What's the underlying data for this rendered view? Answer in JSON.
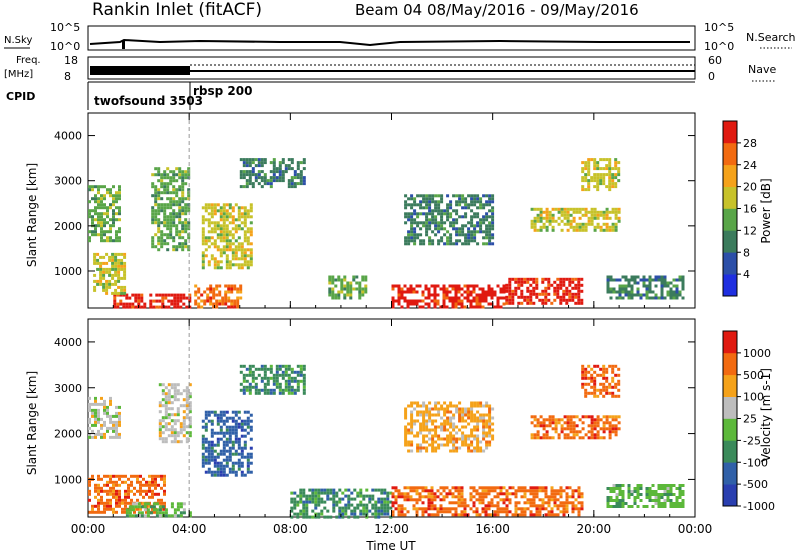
{
  "title_left": "Rankin Inlet (fitACF)",
  "title_right": "Beam 04 08/May/2016 - 09/May/2016",
  "header": {
    "nsky_label": "N.Sky",
    "nsearch_label": "N.Search",
    "nave_label": "Nave",
    "freq_label_1": "Freq.",
    "freq_label_2": "[MHz]",
    "cpid_label": "CPID",
    "nsky_ticks": [
      "10^5",
      "10^0"
    ],
    "nsearch_ticks": [
      "10^5",
      "10^0"
    ],
    "freq_ticks": [
      "18",
      "8"
    ],
    "nave_ticks": [
      "60",
      "0"
    ],
    "cpid_entries": [
      {
        "name": "twofsound 3503",
        "start_hour": 0
      },
      {
        "name": "rbsp 200",
        "start_hour": 4
      }
    ]
  },
  "chart_data": [
    {
      "type": "heatmap",
      "title": "",
      "xlabel": "Time UT",
      "ylabel": "Slant Range [km]",
      "xlim": [
        0,
        24
      ],
      "ylim": [
        180,
        4500
      ],
      "x_tick_labels": [
        "00:00",
        "04:00",
        "08:00",
        "12:00",
        "16:00",
        "20:00",
        "00:00"
      ],
      "x_ticks": [
        0,
        4,
        8,
        12,
        16,
        20,
        24
      ],
      "y_ticks": [
        1000,
        2000,
        3000,
        4000
      ],
      "colorbar": {
        "label": "Power [dB]",
        "tick_labels": [
          "4",
          "8",
          "12",
          "16",
          "20",
          "24",
          "28"
        ],
        "tick_values": [
          4,
          8,
          12,
          16,
          20,
          24,
          28
        ],
        "range": [
          0,
          32
        ],
        "colors": [
          "#1f2fe0",
          "#2c4fa8",
          "#3b7b5c",
          "#59a548",
          "#c7c22a",
          "#f5a21a",
          "#f26a10",
          "#e01a10"
        ]
      },
      "regions": [
        {
          "x": [
            1.0,
            4.0
          ],
          "y": [
            200,
            500
          ],
          "level": 7
        },
        {
          "x": [
            0.2,
            1.5
          ],
          "y": [
            500,
            1400
          ],
          "level": 4
        },
        {
          "x": [
            0.0,
            1.2
          ],
          "y": [
            1700,
            2900
          ],
          "level": 3
        },
        {
          "x": [
            2.5,
            4.0
          ],
          "y": [
            1500,
            3300
          ],
          "level": 3
        },
        {
          "x": [
            4.2,
            6.0
          ],
          "y": [
            180,
            700
          ],
          "level": 6
        },
        {
          "x": [
            4.5,
            6.5
          ],
          "y": [
            1100,
            2500
          ],
          "level": 4
        },
        {
          "x": [
            6.0,
            8.5
          ],
          "y": [
            2900,
            3500
          ],
          "level": 2
        },
        {
          "x": [
            9.5,
            11.0
          ],
          "y": [
            400,
            900
          ],
          "level": 3
        },
        {
          "x": [
            12.0,
            16.5
          ],
          "y": [
            200,
            700
          ],
          "level": 7
        },
        {
          "x": [
            16.5,
            19.5
          ],
          "y": [
            280,
            850
          ],
          "level": 7
        },
        {
          "x": [
            12.5,
            16.0
          ],
          "y": [
            1600,
            2700
          ],
          "level": 2
        },
        {
          "x": [
            17.5,
            21.0
          ],
          "y": [
            1900,
            2400
          ],
          "level": 4
        },
        {
          "x": [
            19.5,
            21.0
          ],
          "y": [
            2800,
            3500
          ],
          "level": 4
        },
        {
          "x": [
            20.5,
            23.5
          ],
          "y": [
            400,
            900
          ],
          "level": 2
        }
      ]
    },
    {
      "type": "heatmap",
      "title": "",
      "xlabel": "Time UT",
      "ylabel": "Slant Range [km]",
      "xlim": [
        0,
        24
      ],
      "ylim": [
        180,
        4500
      ],
      "x_tick_labels": [
        "00:00",
        "04:00",
        "08:00",
        "12:00",
        "16:00",
        "20:00",
        "00:00"
      ],
      "x_ticks": [
        0,
        4,
        8,
        12,
        16,
        20,
        24
      ],
      "y_ticks": [
        1000,
        2000,
        3000,
        4000
      ],
      "colorbar": {
        "label": "Velocity [m s-1]",
        "tick_labels": [
          "1000",
          "500",
          "100",
          "25",
          "-25",
          "-100",
          "-500",
          "-1000"
        ],
        "colors": [
          "#2a3fb0",
          "#3060a8",
          "#3a8a5a",
          "#5cb83a",
          "#bdbdbd",
          "#f5a21a",
          "#f26a10",
          "#e01a10"
        ]
      },
      "regions": [
        {
          "x": [
            0.0,
            1.2
          ],
          "y": [
            1900,
            2800
          ],
          "level": 4
        },
        {
          "x": [
            2.8,
            4.0
          ],
          "y": [
            1800,
            3100
          ],
          "level": 4
        },
        {
          "x": [
            0.0,
            3.0
          ],
          "y": [
            300,
            1100
          ],
          "level": 6
        },
        {
          "x": [
            1.5,
            4.0
          ],
          "y": [
            200,
            500
          ],
          "level": 3
        },
        {
          "x": [
            4.5,
            6.5
          ],
          "y": [
            1100,
            2500
          ],
          "level": 1
        },
        {
          "x": [
            6.0,
            8.5
          ],
          "y": [
            2900,
            3500
          ],
          "level": 2
        },
        {
          "x": [
            8.0,
            12.0
          ],
          "y": [
            200,
            800
          ],
          "level": 2
        },
        {
          "x": [
            12.0,
            19.5
          ],
          "y": [
            250,
            850
          ],
          "level": 6
        },
        {
          "x": [
            12.5,
            16.0
          ],
          "y": [
            1600,
            2700
          ],
          "level": 5
        },
        {
          "x": [
            17.5,
            21.0
          ],
          "y": [
            1900,
            2400
          ],
          "level": 6
        },
        {
          "x": [
            19.5,
            21.0
          ],
          "y": [
            2800,
            3500
          ],
          "level": 6
        },
        {
          "x": [
            20.5,
            23.5
          ],
          "y": [
            400,
            900
          ],
          "level": 3
        }
      ]
    }
  ]
}
